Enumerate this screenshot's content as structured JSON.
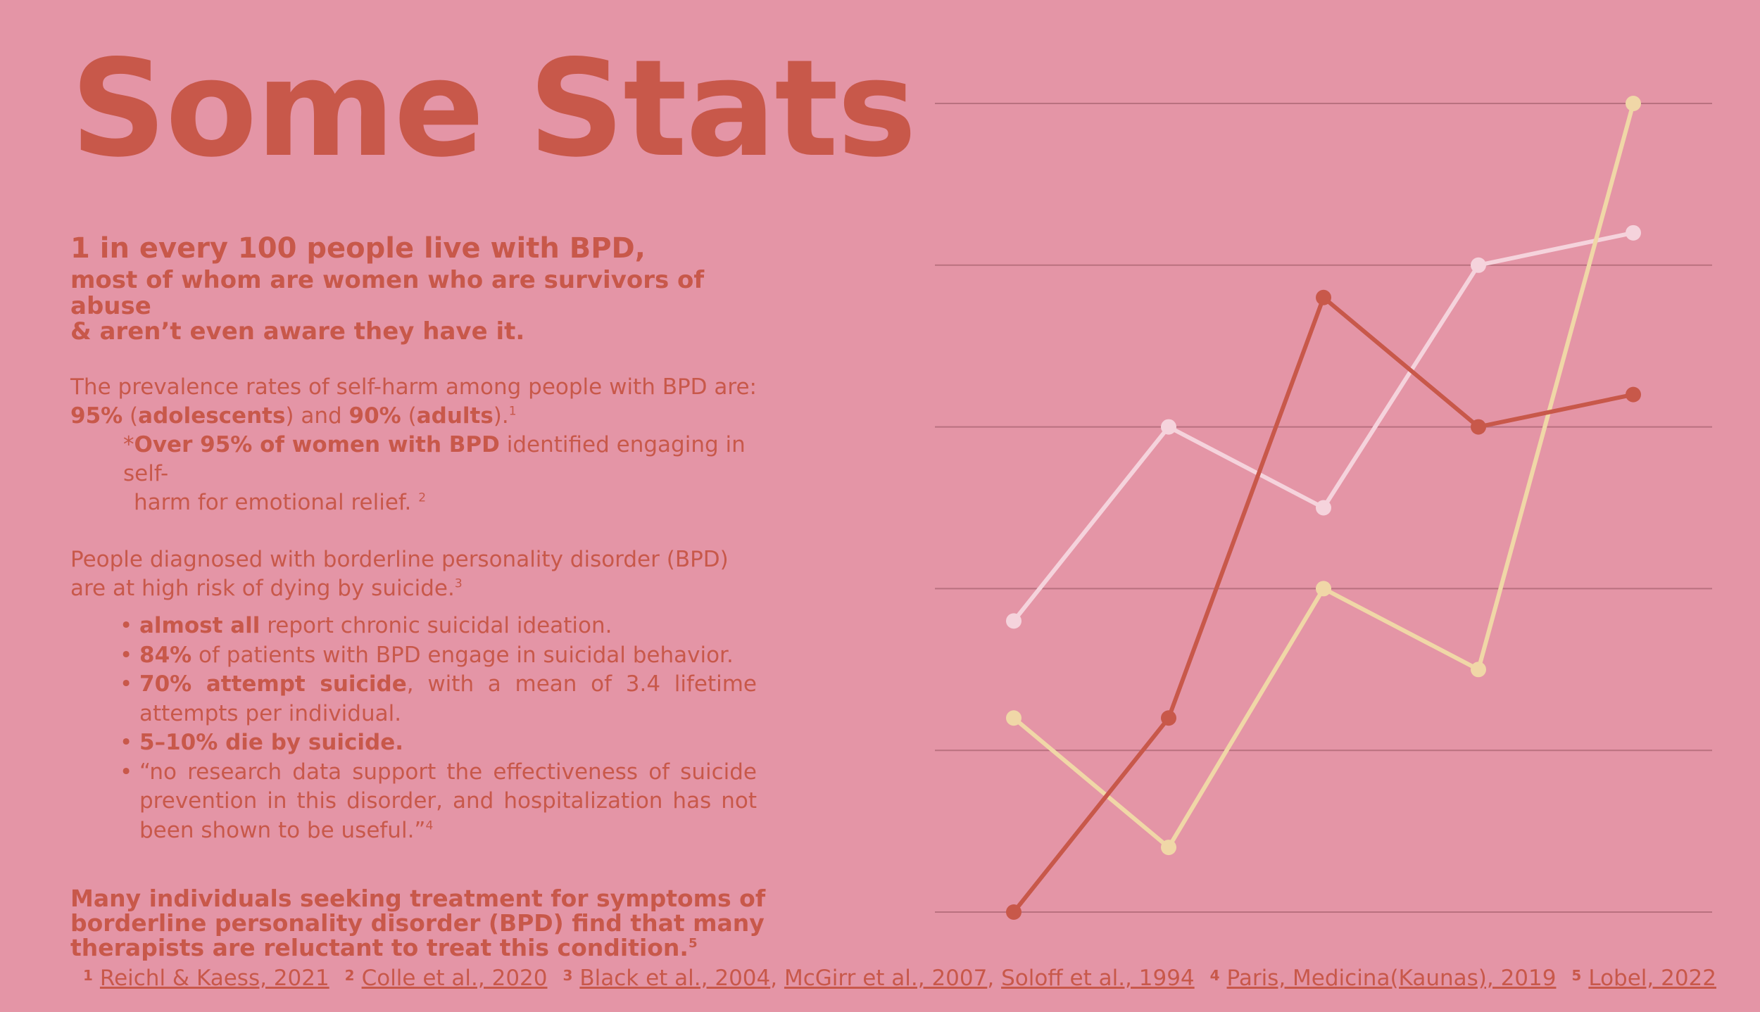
{
  "title": "Some Stats",
  "intro": {
    "line1": "1 in every 100 people live with BPD,",
    "line2a": "most of whom are women who are survivors of abuse",
    "line2b": "& aren’t even aware they have it."
  },
  "selfharm": {
    "lead": "The prevalence rates of self-harm among people with BPD are:",
    "pct_adolescents": "95%",
    "adolescents": "adolescents",
    "and": "and",
    "pct_adults": "90%",
    "adults": "adults",
    "ref1": "1",
    "note_star": "*",
    "note_bold": "Over 95% of women with BPD",
    "note_text1": "identified engaging in self-",
    "note_text2": "harm for emotional relief.",
    "ref2": "2"
  },
  "suicide": {
    "line1": "People diagnosed with borderline personality disorder (BPD)",
    "line2": "are at high risk of dying by suicide.",
    "ref3": "3",
    "bullets": [
      {
        "bold": "almost all",
        "text": " report chronic suicidal ideation."
      },
      {
        "bold": "84%",
        "text": " of patients with BPD engage in suicidal behavior."
      },
      {
        "bold": "70% attempt suicide",
        "text": ", with a mean of 3.4 lifetime attempts per individual."
      },
      {
        "bold": "5–10% die by suicide.",
        "text": ""
      },
      {
        "bold": "",
        "text": "“no research data support the effectiveness of suicide prevention in this disorder, and hospitalization has not been shown to be useful.”",
        "ref": "4"
      }
    ]
  },
  "closing": {
    "text": "Many individuals seeking treatment for symptoms of borderline personality disorder (BPD) find that many therapists are reluctant to treat this condition.",
    "ref": "5"
  },
  "references": [
    {
      "num": "1",
      "links": [
        "Reichl & Kaess, 2021"
      ]
    },
    {
      "num": "2",
      "links": [
        "Colle et al., 2020 "
      ]
    },
    {
      "num": "3",
      "links": [
        "Black et al., 2004",
        "McGirr et al., 2007",
        "Soloff et al., 1994"
      ]
    },
    {
      "num": "4",
      "links": [
        "Paris, Medicina(Kaunas), 2019"
      ]
    },
    {
      "num": "5",
      "links": [
        "Lobel, 2022"
      ]
    }
  ],
  "colors": {
    "background": "#e495a6",
    "accent": "#c8584a",
    "series_red": "#c8584a",
    "series_pink": "#f5d3dc",
    "series_cream": "#f0d7a7",
    "grid": "#b9717f"
  },
  "chart_data": {
    "type": "line",
    "x": [
      1,
      2,
      3,
      4,
      5
    ],
    "ylim": [
      0,
      5
    ],
    "gridlines": [
      0,
      1,
      2,
      3,
      4,
      5
    ],
    "grid": true,
    "legend": false,
    "series": [
      {
        "color": "#c8584a",
        "values": [
          0,
          1.2,
          3.8,
          3.0,
          3.2
        ]
      },
      {
        "color": "#f5d3dc",
        "values": [
          1.8,
          3.0,
          2.5,
          4.0,
          4.2
        ]
      },
      {
        "color": "#f0d7a7",
        "values": [
          1.2,
          0.4,
          2.0,
          1.5,
          5.0
        ]
      }
    ]
  }
}
